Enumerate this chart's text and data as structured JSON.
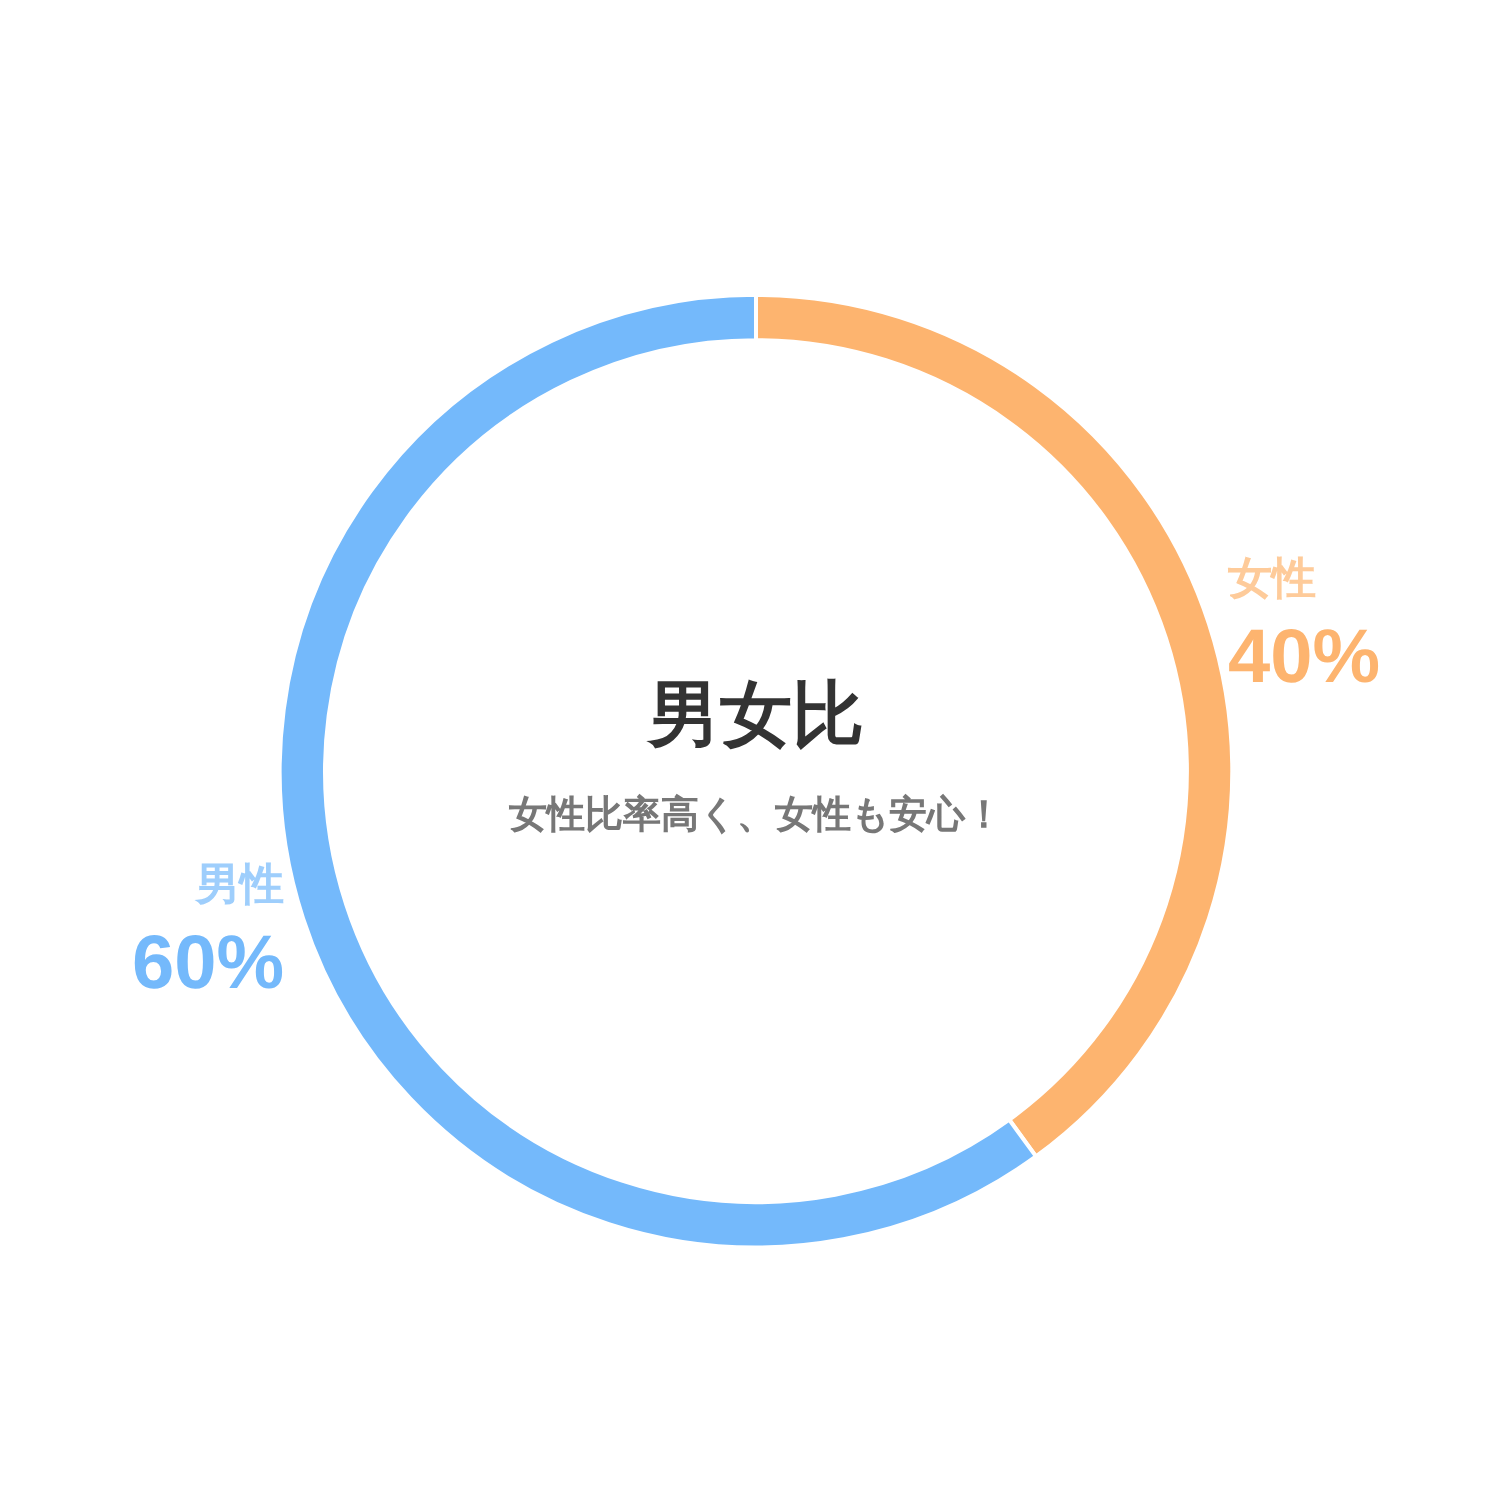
{
  "chart_data": {
    "type": "donut",
    "title": "男女比",
    "subtitle": "女性比率高く、女性も安心！",
    "categories": [
      "女性",
      "男性"
    ],
    "values": [
      40,
      60
    ],
    "value_labels": [
      "40%",
      "60%"
    ],
    "colors": [
      "#fdb46f",
      "#74b9fb"
    ],
    "legend": false
  }
}
